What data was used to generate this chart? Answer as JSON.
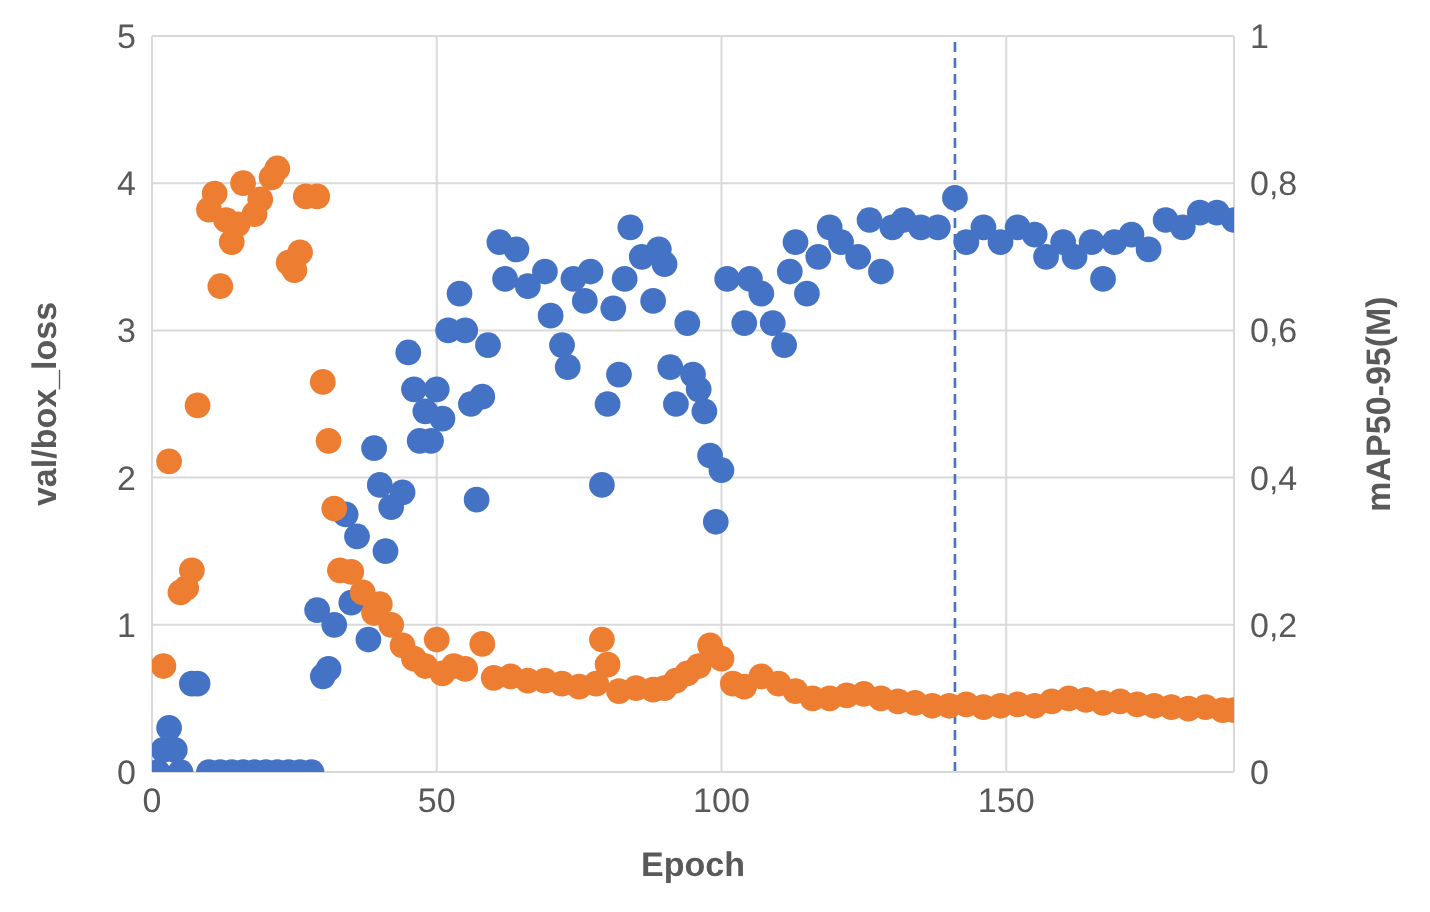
{
  "chart_data": {
    "type": "scatter",
    "xlabel": "Epoch",
    "ylabel": "val/box_loss",
    "y2label": "mAP50-95(M)",
    "xlim": [
      0,
      190
    ],
    "xticks": [
      0,
      50,
      100,
      150
    ],
    "ylim": [
      0,
      5
    ],
    "yticks": [
      0,
      1,
      2,
      3,
      4,
      5
    ],
    "y2lim": [
      0,
      1
    ],
    "y2ticks": [
      0,
      {
        "value": 0.2,
        "label": "0,2"
      },
      {
        "value": 0.4,
        "label": "0,4"
      },
      {
        "value": 0.6,
        "label": "0,6"
      },
      {
        "value": 0.8,
        "label": "0,8"
      },
      1
    ],
    "grid": true,
    "legend": false,
    "marker": "circle",
    "ref_lines": [
      {
        "axis": "x",
        "value": 141,
        "color": "#4472c4",
        "line_style": "dashed"
      }
    ],
    "series": [
      {
        "color": "#4472c4",
        "axis": "y2",
        "x": [
          1,
          2,
          3,
          4,
          5,
          7,
          8,
          10,
          12,
          14,
          16,
          18,
          20,
          22,
          24,
          26,
          28,
          29,
          30,
          31,
          32,
          34,
          35,
          36,
          38,
          39,
          40,
          41,
          42,
          44,
          45,
          46,
          47,
          48,
          49,
          50,
          51,
          52,
          54,
          55,
          56,
          57,
          58,
          59,
          61,
          62,
          64,
          66,
          69,
          70,
          72,
          73,
          74,
          76,
          77,
          79,
          80,
          81,
          82,
          83,
          84,
          86,
          88,
          89,
          90,
          91,
          92,
          94,
          95,
          96,
          97,
          98,
          99,
          100,
          101,
          104,
          105,
          107,
          109,
          111,
          112,
          113,
          115,
          117,
          119,
          121,
          124,
          126,
          128,
          130,
          132,
          135,
          138,
          141,
          143,
          146,
          149,
          152,
          155,
          157,
          160,
          162,
          165,
          167,
          169,
          172,
          175,
          178,
          181,
          184,
          187,
          190
        ],
        "values": [
          0,
          0.03,
          0.06,
          0.03,
          0,
          0.12,
          0.12,
          0,
          0,
          0,
          0,
          0,
          0,
          0,
          0,
          0,
          0,
          0.22,
          0.13,
          0.14,
          0.2,
          0.35,
          0.23,
          0.32,
          0.18,
          0.44,
          0.39,
          0.3,
          0.36,
          0.38,
          0.57,
          0.52,
          0.45,
          0.49,
          0.45,
          0.52,
          0.48,
          0.6,
          0.65,
          0.6,
          0.5,
          0.37,
          0.51,
          0.58,
          0.72,
          0.67,
          0.71,
          0.66,
          0.68,
          0.62,
          0.58,
          0.55,
          0.67,
          0.64,
          0.68,
          0.39,
          0.5,
          0.63,
          0.54,
          0.67,
          0.74,
          0.7,
          0.64,
          0.71,
          0.69,
          0.55,
          0.5,
          0.61,
          0.54,
          0.52,
          0.49,
          0.43,
          0.34,
          0.41,
          0.67,
          0.61,
          0.67,
          0.65,
          0.61,
          0.58,
          0.68,
          0.72,
          0.65,
          0.7,
          0.74,
          0.72,
          0.7,
          0.75,
          0.68,
          0.74,
          0.75,
          0.74,
          0.74,
          0.78,
          0.72,
          0.74,
          0.72,
          0.74,
          0.73,
          0.7,
          0.72,
          0.7,
          0.72,
          0.67,
          0.72,
          0.73,
          0.71,
          0.75,
          0.74,
          0.76,
          0.76,
          0.75
        ]
      },
      {
        "color": "#ed7d31",
        "x": [
          2,
          3,
          5,
          6,
          7,
          8,
          10,
          11,
          12,
          13,
          14,
          15,
          16,
          18,
          19,
          21,
          22,
          24,
          25,
          26,
          27,
          29,
          30,
          31,
          32,
          33,
          35,
          37,
          39,
          40,
          42,
          44,
          46,
          48,
          50,
          51,
          53,
          55,
          58,
          60,
          63,
          66,
          69,
          72,
          75,
          78,
          79,
          80,
          82,
          85,
          88,
          90,
          92,
          94,
          96,
          98,
          100,
          102,
          104,
          107,
          110,
          113,
          116,
          119,
          122,
          125,
          128,
          131,
          134,
          137,
          140,
          143,
          146,
          149,
          152,
          155,
          158,
          161,
          164,
          167,
          170,
          173,
          176,
          179,
          182,
          185,
          188,
          190
        ],
        "values": [
          0.72,
          2.11,
          1.22,
          1.25,
          1.37,
          2.49,
          3.82,
          3.93,
          3.3,
          3.75,
          3.6,
          3.72,
          4.0,
          3.79,
          3.89,
          4.04,
          4.1,
          3.46,
          3.41,
          3.53,
          3.91,
          3.91,
          2.65,
          2.25,
          1.79,
          1.37,
          1.36,
          1.22,
          1.08,
          1.14,
          1.0,
          0.86,
          0.77,
          0.72,
          0.9,
          0.67,
          0.72,
          0.7,
          0.87,
          0.64,
          0.65,
          0.62,
          0.62,
          0.6,
          0.58,
          0.6,
          0.9,
          0.73,
          0.55,
          0.57,
          0.56,
          0.57,
          0.62,
          0.67,
          0.72,
          0.86,
          0.77,
          0.6,
          0.58,
          0.65,
          0.6,
          0.55,
          0.5,
          0.5,
          0.52,
          0.53,
          0.5,
          0.48,
          0.47,
          0.45,
          0.45,
          0.46,
          0.44,
          0.45,
          0.46,
          0.45,
          0.48,
          0.5,
          0.49,
          0.47,
          0.48,
          0.46,
          0.45,
          0.44,
          0.43,
          0.44,
          0.42,
          0.42
        ]
      }
    ]
  }
}
